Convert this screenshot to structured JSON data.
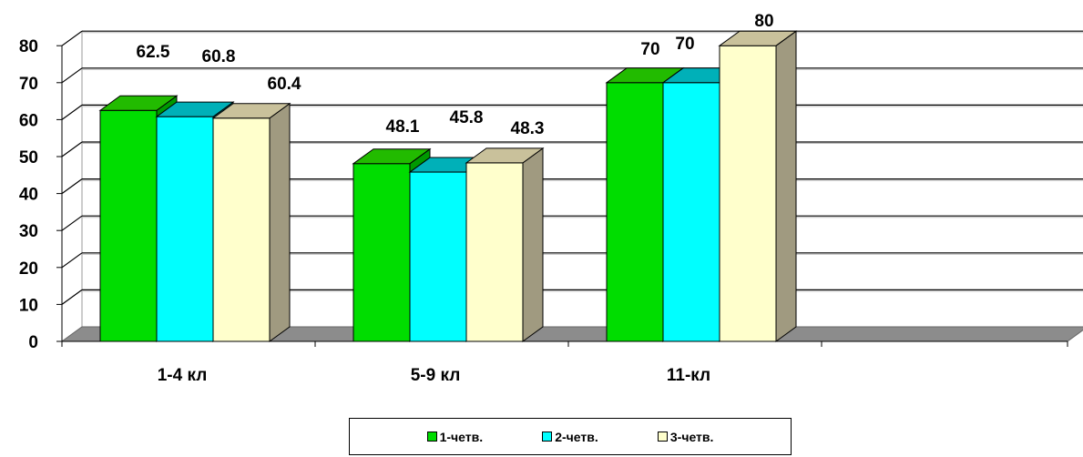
{
  "chart_data": {
    "type": "bar",
    "categories": [
      "1-4 кл",
      "5-9 кл",
      "11-кл"
    ],
    "series": [
      {
        "name": "1-четв.",
        "values": [
          62.5,
          48.1,
          70
        ],
        "labels": [
          "62.5",
          "48.1",
          "70"
        ],
        "color": "#00dd00",
        "top_color": "#22bb00",
        "side_color": "#009900"
      },
      {
        "name": "2-четв.",
        "values": [
          60.8,
          45.8,
          70
        ],
        "labels": [
          "60.8",
          "45.8",
          "70"
        ],
        "color": "#00ffff",
        "top_color": "#00b0b8",
        "side_color": "#009aa0"
      },
      {
        "name": "3-четв.",
        "values": [
          60.4,
          48.3,
          80
        ],
        "labels": [
          "60.4",
          "48.3",
          "80"
        ],
        "color": "#ffffcc",
        "top_color": "#c9c19b",
        "side_color": "#a09a80"
      }
    ],
    "yticks": [
      "0",
      "10",
      "20",
      "30",
      "40",
      "50",
      "60",
      "70",
      "80"
    ],
    "ylim": [
      0,
      80
    ],
    "grid": true,
    "legend_position": "bottom",
    "floor_color": "#8c8c8c"
  }
}
